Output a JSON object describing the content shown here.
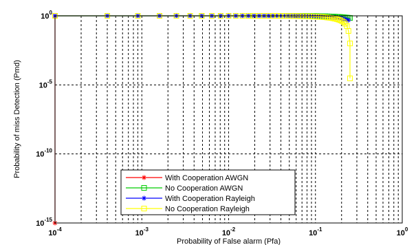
{
  "chart_data": {
    "type": "line",
    "title": "",
    "xlabel": "Probability of False alarm (Pfa)",
    "ylabel": "Probability of miss Detection (Pmd)",
    "x_scale": "log",
    "y_scale": "log",
    "xlim": [
      0.0001,
      1
    ],
    "ylim": [
      1e-15,
      1
    ],
    "x_ticks": [
      {
        "base": "10",
        "exp": "-4",
        "value": 0.0001
      },
      {
        "base": "10",
        "exp": "-3",
        "value": 0.001
      },
      {
        "base": "10",
        "exp": "-2",
        "value": 0.01
      },
      {
        "base": "10",
        "exp": "-1",
        "value": 0.1
      },
      {
        "base": "10",
        "exp": "0",
        "value": 1
      }
    ],
    "y_ticks": [
      {
        "base": "10",
        "exp": "0",
        "value": 1
      },
      {
        "base": "10",
        "exp": "-5",
        "value": 1e-05
      },
      {
        "base": "10",
        "exp": "-10",
        "value": 1e-10
      },
      {
        "base": "10",
        "exp": "-15",
        "value": 1e-15
      }
    ],
    "grid": true,
    "legend_position": "bottom-center",
    "series": [
      {
        "name": "With Cooperation AWGN",
        "color": "#ff0000",
        "marker": "star",
        "x": [
          0.0001,
          0.0001
        ],
        "y": [
          1,
          1e-15
        ]
      },
      {
        "name": "No Cooperation AWGN",
        "color": "#00cc00",
        "marker": "square",
        "x": [
          0.0001,
          0.0004,
          0.0009,
          0.0016,
          0.0025,
          0.0036,
          0.0049,
          0.0064,
          0.0081,
          0.01,
          0.0121,
          0.0144,
          0.0169,
          0.0196,
          0.0225,
          0.0256,
          0.0289,
          0.0324,
          0.0361,
          0.04,
          0.0441,
          0.0484,
          0.0529,
          0.0576,
          0.0625,
          0.0676,
          0.0729,
          0.0784,
          0.0841,
          0.09,
          0.0961,
          0.1024,
          0.1089,
          0.1156,
          0.1225,
          0.1296,
          0.1369,
          0.1444,
          0.1521,
          0.16,
          0.1681,
          0.1764,
          0.1849,
          0.1936,
          0.2025,
          0.2116,
          0.2209,
          0.2304,
          0.24,
          0.25
        ],
        "y": [
          1,
          1,
          1,
          1,
          1,
          1,
          1,
          1,
          1,
          1,
          1,
          1,
          1,
          1,
          1,
          1,
          1,
          1,
          1,
          1,
          1,
          1,
          1,
          1,
          0.99,
          0.99,
          0.99,
          0.98,
          0.98,
          0.97,
          0.97,
          0.96,
          0.95,
          0.94,
          0.93,
          0.92,
          0.91,
          0.9,
          0.89,
          0.88,
          0.87,
          0.85,
          0.84,
          0.82,
          0.8,
          0.78,
          0.76,
          0.74,
          0.72,
          0.7
        ]
      },
      {
        "name": "With Cooperation Rayleigh",
        "color": "#0000ff",
        "marker": "star",
        "x": [
          0.0001,
          0.0004,
          0.0009,
          0.0016,
          0.0025,
          0.0036,
          0.0049,
          0.0064,
          0.0081,
          0.01,
          0.0121,
          0.0144,
          0.0169,
          0.0196,
          0.0225,
          0.0256,
          0.0289,
          0.0324,
          0.0361,
          0.04,
          0.0441,
          0.0484,
          0.0529,
          0.0576,
          0.0625,
          0.0676,
          0.0729,
          0.0784,
          0.0841,
          0.09,
          0.0961,
          0.1024,
          0.1089,
          0.1156,
          0.1225,
          0.1296,
          0.1369,
          0.1444,
          0.1521,
          0.16,
          0.1681,
          0.1764,
          0.1849,
          0.1936,
          0.2025,
          0.2116,
          0.2209,
          0.2304,
          0.24
        ],
        "y": [
          1,
          1,
          1,
          1,
          1,
          1,
          1,
          1,
          1,
          1,
          1,
          1,
          1,
          1,
          1,
          1,
          1,
          1,
          1,
          1,
          1,
          1,
          1,
          0.99,
          0.99,
          0.99,
          0.98,
          0.98,
          0.97,
          0.96,
          0.95,
          0.94,
          0.93,
          0.92,
          0.9,
          0.88,
          0.86,
          0.84,
          0.82,
          0.8,
          0.77,
          0.74,
          0.71,
          0.68,
          0.64,
          0.6,
          0.56,
          0.52,
          0.48
        ]
      },
      {
        "name": "No Cooperation Rayleigh",
        "color": "#ffff00",
        "marker": "square",
        "x": [
          0.0001,
          0.0004,
          0.0009,
          0.0016,
          0.0025,
          0.0036,
          0.0049,
          0.0064,
          0.0081,
          0.01,
          0.0121,
          0.0144,
          0.0169,
          0.0196,
          0.0225,
          0.0256,
          0.0289,
          0.0324,
          0.0361,
          0.04,
          0.0441,
          0.0484,
          0.0529,
          0.0576,
          0.0625,
          0.0676,
          0.0729,
          0.0784,
          0.0841,
          0.09,
          0.0961,
          0.1024,
          0.1089,
          0.1156,
          0.1225,
          0.1296,
          0.1369,
          0.1444,
          0.1521,
          0.16,
          0.1681,
          0.1764,
          0.1849,
          0.1936,
          0.2025,
          0.2116,
          0.2209,
          0.2304,
          0.24,
          0.25,
          0.25
        ],
        "y": [
          1,
          1,
          1,
          1,
          1,
          1,
          1,
          1,
          1,
          1,
          1,
          1,
          1,
          1,
          1,
          1,
          1,
          1,
          1,
          0.99,
          0.99,
          0.99,
          0.98,
          0.98,
          0.97,
          0.96,
          0.95,
          0.94,
          0.93,
          0.92,
          0.9,
          0.88,
          0.86,
          0.84,
          0.82,
          0.79,
          0.76,
          0.73,
          0.7,
          0.66,
          0.62,
          0.58,
          0.53,
          0.48,
          0.42,
          0.35,
          0.27,
          0.18,
          0.08,
          0.01,
          3e-05
        ]
      }
    ]
  }
}
